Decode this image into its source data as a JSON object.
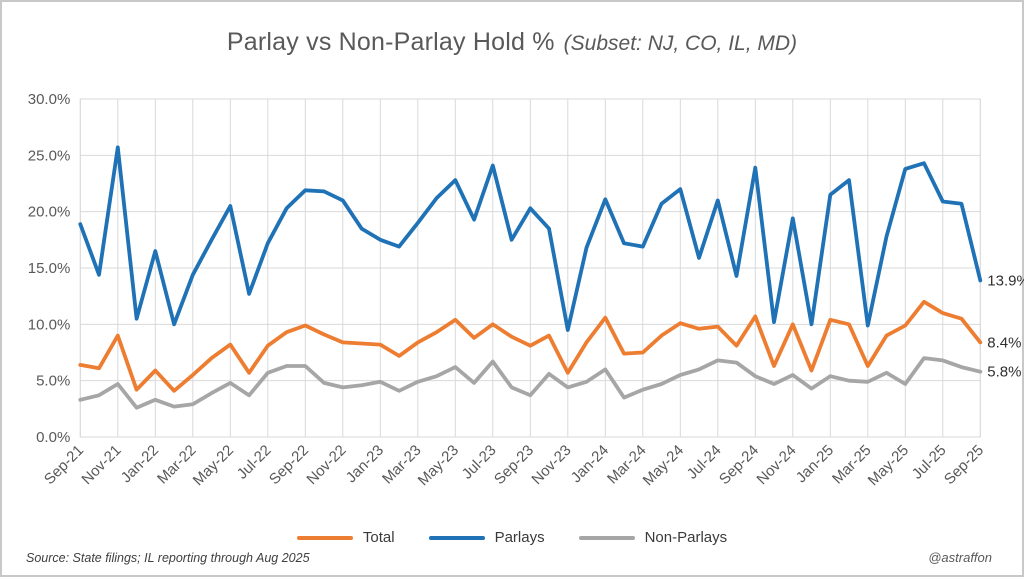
{
  "title": {
    "main": "Parlay vs Non-Parlay Hold %",
    "subset": "(Subset: NJ, CO, IL, MD)"
  },
  "footer": {
    "source": "Source: State filings;  IL reporting through Aug 2025",
    "watermark": "@astraffon"
  },
  "chart_data": {
    "type": "line",
    "x": [
      "Sep-21",
      "Oct-21",
      "Nov-21",
      "Dec-21",
      "Jan-22",
      "Feb-22",
      "Mar-22",
      "Apr-22",
      "May-22",
      "Jun-22",
      "Jul-22",
      "Aug-22",
      "Sep-22",
      "Oct-22",
      "Nov-22",
      "Dec-22",
      "Jan-23",
      "Feb-23",
      "Mar-23",
      "Apr-23",
      "May-23",
      "Jun-23",
      "Jul-23",
      "Aug-23",
      "Sep-23",
      "Oct-23",
      "Nov-23",
      "Dec-23",
      "Jan-24",
      "Feb-24",
      "Mar-24",
      "Apr-24",
      "May-24",
      "Jun-24",
      "Jul-24",
      "Aug-24",
      "Sep-24",
      "Oct-24",
      "Nov-24",
      "Dec-24",
      "Jan-25",
      "Feb-25",
      "Mar-25",
      "Apr-25",
      "May-25",
      "Jun-25",
      "Jul-25",
      "Aug-25",
      "Sep-25"
    ],
    "x_tick_every": 2,
    "series": [
      {
        "name": "Total",
        "color": "#ED7D31",
        "values": [
          6.4,
          6.1,
          9.0,
          4.2,
          5.9,
          4.1,
          5.5,
          7.0,
          8.2,
          5.7,
          8.1,
          9.3,
          9.9,
          9.1,
          8.4,
          8.3,
          8.2,
          7.2,
          8.4,
          9.3,
          10.4,
          8.8,
          10.0,
          8.9,
          8.1,
          9.0,
          5.7,
          8.4,
          10.6,
          7.4,
          7.5,
          9.0,
          10.1,
          9.6,
          9.8,
          8.1,
          10.7,
          6.3,
          10.0,
          5.9,
          10.4,
          10.0,
          6.3,
          9.0,
          9.9,
          12.0,
          11.0,
          10.5,
          8.4
        ]
      },
      {
        "name": "Parlays",
        "color": "#1F72B6",
        "values": [
          18.9,
          14.4,
          25.7,
          10.5,
          16.5,
          10.0,
          14.4,
          17.5,
          20.5,
          12.7,
          17.2,
          20.3,
          21.9,
          21.8,
          21.0,
          18.5,
          17.5,
          16.9,
          19.0,
          21.2,
          22.8,
          19.3,
          24.1,
          17.5,
          20.3,
          18.5,
          9.5,
          16.8,
          21.1,
          17.2,
          16.9,
          20.7,
          22.0,
          15.9,
          21.0,
          14.3,
          23.9,
          10.2,
          19.4,
          10.0,
          21.5,
          22.8,
          9.9,
          17.8,
          23.8,
          24.3,
          20.9,
          20.7,
          13.9
        ]
      },
      {
        "name": "Non-Parlays",
        "color": "#A6A6A6",
        "values": [
          3.3,
          3.7,
          4.7,
          2.6,
          3.3,
          2.7,
          2.9,
          3.9,
          4.8,
          3.7,
          5.7,
          6.3,
          6.3,
          4.8,
          4.4,
          4.6,
          4.9,
          4.1,
          4.9,
          5.4,
          6.2,
          4.8,
          6.7,
          4.4,
          3.7,
          5.6,
          4.4,
          4.9,
          6.0,
          3.5,
          4.2,
          4.7,
          5.5,
          6.0,
          6.8,
          6.6,
          5.4,
          4.7,
          5.5,
          4.3,
          5.4,
          5.0,
          4.9,
          5.7,
          4.7,
          7.0,
          6.8,
          6.2,
          5.8
        ]
      }
    ],
    "end_labels": [
      {
        "series": "Parlays",
        "text": "13.9%",
        "value": 13.9
      },
      {
        "series": "Total",
        "text": "8.4%",
        "value": 8.4
      },
      {
        "series": "Non-Parlays",
        "text": "5.8%",
        "value": 5.8
      }
    ],
    "y_tick_labels": [
      "0.0%",
      "5.0%",
      "10.0%",
      "15.0%",
      "20.0%",
      "25.0%",
      "30.0%"
    ],
    "ylim": [
      0,
      30
    ],
    "ytick_step": 5,
    "grid": true,
    "gridline_color": "#D9D9D9",
    "axis_text_color": "#595959",
    "end_label_color": "#303030",
    "legend_position": "bottom"
  }
}
